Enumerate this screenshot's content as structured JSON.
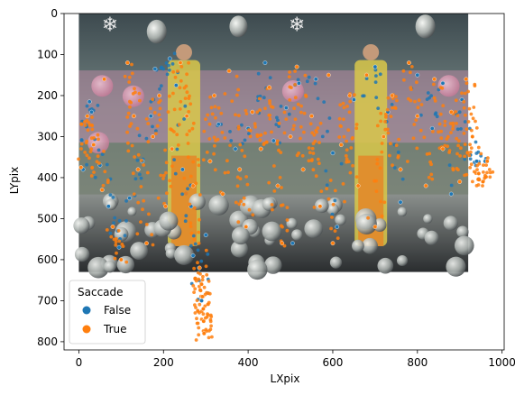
{
  "chart_data": {
    "type": "scatter",
    "title": "",
    "xlabel": "LXpix",
    "ylabel": "LYpix",
    "xlim": [
      -35,
      1005
    ],
    "ylim": [
      820,
      0
    ],
    "y_inverted": true,
    "x_ticks": [
      0,
      200,
      400,
      600,
      800,
      1000
    ],
    "y_ticks": [
      0,
      100,
      200,
      300,
      400,
      500,
      600,
      700,
      800
    ],
    "background_image": {
      "description_free": true,
      "x_range": [
        0,
        920
      ],
      "y_range": [
        0,
        630
      ]
    },
    "legend": {
      "title": "Saccade",
      "placement": "lower-left",
      "entries": [
        "False",
        "True"
      ]
    },
    "series": [
      {
        "name": "False",
        "color": "#1f77b4",
        "points": [
          [
            10,
            380
          ],
          [
            25,
            215
          ],
          [
            30,
            240
          ],
          [
            50,
            370
          ],
          [
            70,
            470
          ],
          [
            95,
            570
          ],
          [
            120,
            450
          ],
          [
            150,
            360
          ],
          [
            170,
            250
          ],
          [
            180,
            135
          ],
          [
            215,
            110
          ],
          [
            230,
            175
          ],
          [
            245,
            380
          ],
          [
            265,
            470
          ],
          [
            270,
            590
          ],
          [
            290,
            700
          ],
          [
            300,
            540
          ],
          [
            330,
            270
          ],
          [
            370,
            330
          ],
          [
            400,
            280
          ],
          [
            440,
            120
          ],
          [
            460,
            310
          ],
          [
            490,
            230
          ],
          [
            505,
            560
          ],
          [
            520,
            170
          ],
          [
            560,
            160
          ],
          [
            600,
            340
          ],
          [
            610,
            520
          ],
          [
            650,
            210
          ],
          [
            700,
            130
          ],
          [
            730,
            240
          ],
          [
            760,
            460
          ],
          [
            800,
            150
          ],
          [
            835,
            280
          ],
          [
            860,
            170
          ],
          [
            880,
            440
          ],
          [
            905,
            210
          ],
          [
            925,
            345
          ],
          [
            940,
            360
          ],
          [
            960,
            360
          ]
        ]
      },
      {
        "name": "True",
        "color": "#ff7f0e",
        "points": [
          [
            5,
            375
          ],
          [
            20,
            250
          ],
          [
            35,
            320
          ],
          [
            55,
            430
          ],
          [
            60,
            160
          ],
          [
            80,
            520
          ],
          [
            100,
            600
          ],
          [
            115,
            120
          ],
          [
            130,
            250
          ],
          [
            140,
            380
          ],
          [
            160,
            560
          ],
          [
            175,
            300
          ],
          [
            190,
            200
          ],
          [
            205,
            470
          ],
          [
            220,
            330
          ],
          [
            240,
            120
          ],
          [
            255,
            250
          ],
          [
            270,
            420
          ],
          [
            285,
            620
          ],
          [
            290,
            660
          ],
          [
            292,
            690
          ],
          [
            294,
            720
          ],
          [
            295,
            750
          ],
          [
            296,
            780
          ],
          [
            310,
            360
          ],
          [
            320,
            200
          ],
          [
            340,
            440
          ],
          [
            355,
            140
          ],
          [
            380,
            380
          ],
          [
            395,
            520
          ],
          [
            410,
            240
          ],
          [
            430,
            330
          ],
          [
            450,
            180
          ],
          [
            470,
            420
          ],
          [
            480,
            560
          ],
          [
            500,
            300
          ],
          [
            515,
            130
          ],
          [
            530,
            380
          ],
          [
            550,
            250
          ],
          [
            570,
            470
          ],
          [
            590,
            150
          ],
          [
            600,
            560
          ],
          [
            620,
            320
          ],
          [
            640,
            200
          ],
          [
            660,
            420
          ],
          [
            680,
            150
          ],
          [
            700,
            520
          ],
          [
            720,
            300
          ],
          [
            740,
            200
          ],
          [
            760,
            380
          ],
          [
            780,
            120
          ],
          [
            800,
            250
          ],
          [
            820,
            420
          ],
          [
            840,
            160
          ],
          [
            860,
            330
          ],
          [
            880,
            240
          ],
          [
            900,
            410
          ],
          [
            915,
            160
          ],
          [
            930,
            300
          ],
          [
            945,
            390
          ],
          [
            955,
            410
          ],
          [
            965,
            360
          ]
        ]
      }
    ],
    "grid": false
  }
}
